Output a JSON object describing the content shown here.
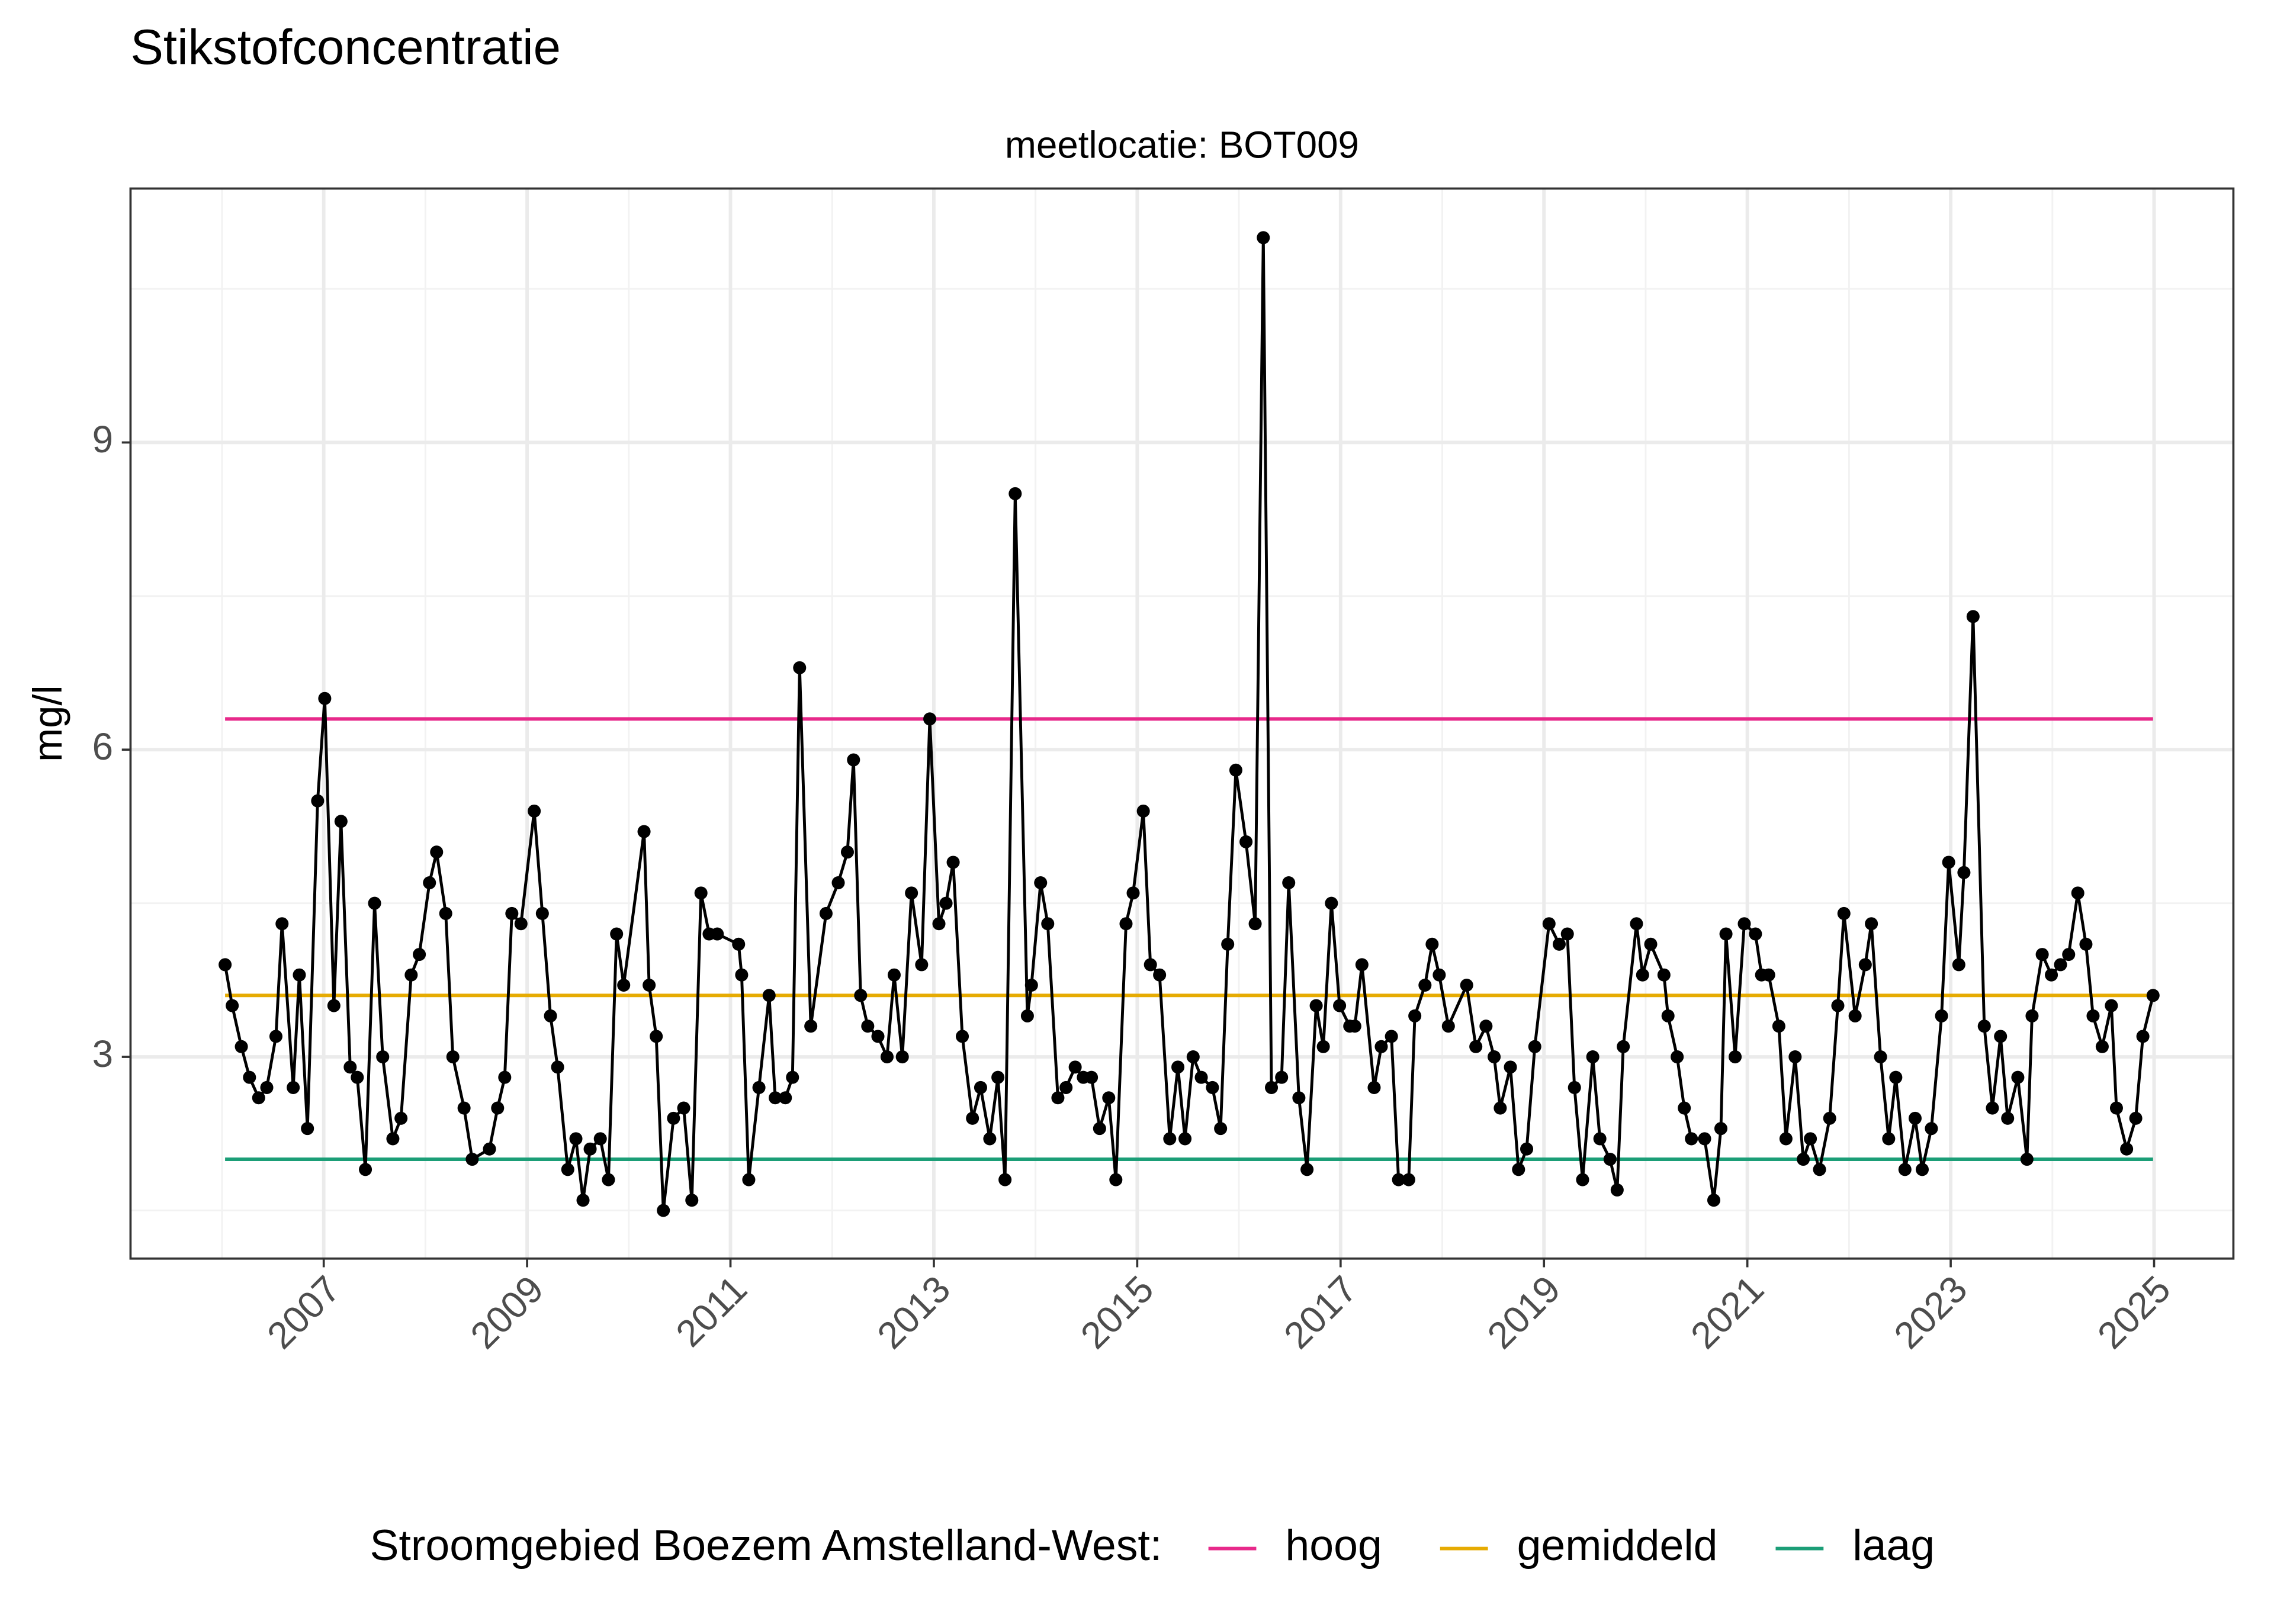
{
  "chart_data": {
    "type": "line",
    "title": "Stikstofconcentratie",
    "subtitle": "meetlocatie: BOT009",
    "ylabel": "mg/l",
    "legend_title": "Stroomgebied Boezem Amstelland-West:",
    "color": "#000000",
    "x": [
      2006.03,
      2006.1,
      2006.19,
      2006.27,
      2006.36,
      2006.44,
      2006.53,
      2006.59,
      2006.7,
      2006.76,
      2006.84,
      2006.94,
      2007.01,
      2007.1,
      2007.17,
      2007.26,
      2007.33,
      2007.41,
      2007.5,
      2007.58,
      2007.68,
      2007.76,
      2007.86,
      2007.94,
      2008.04,
      2008.11,
      2008.2,
      2008.27,
      2008.38,
      2008.46,
      2008.63,
      2008.71,
      2008.78,
      2008.85,
      2008.94,
      2009.07,
      2009.15,
      2009.23,
      2009.3,
      2009.4,
      2009.48,
      2009.55,
      2009.62,
      2009.72,
      2009.8,
      2009.88,
      2009.95,
      2010.15,
      2010.2,
      2010.27,
      2010.34,
      2010.44,
      2010.54,
      2010.62,
      2010.71,
      2010.79,
      2010.87,
      2011.08,
      2011.11,
      2011.18,
      2011.28,
      2011.38,
      2011.44,
      2011.54,
      2011.61,
      2011.68,
      2011.79,
      2011.94,
      2012.06,
      2012.15,
      2012.21,
      2012.28,
      2012.35,
      2012.45,
      2012.54,
      2012.61,
      2012.69,
      2012.78,
      2012.88,
      2012.96,
      2013.05,
      2013.12,
      2013.19,
      2013.28,
      2013.38,
      2013.46,
      2013.55,
      2013.63,
      2013.7,
      2013.8,
      2013.92,
      2013.96,
      2014.05,
      2014.12,
      2014.22,
      2014.3,
      2014.39,
      2014.47,
      2014.55,
      2014.63,
      2014.72,
      2014.79,
      2014.89,
      2014.96,
      2015.06,
      2015.13,
      2015.22,
      2015.32,
      2015.4,
      2015.47,
      2015.55,
      2015.63,
      2015.74,
      2015.82,
      2015.89,
      2015.97,
      2016.07,
      2016.16,
      2016.24,
      2016.32,
      2016.42,
      2016.49,
      2016.59,
      2016.67,
      2016.76,
      2016.83,
      2016.91,
      2016.99,
      2017.09,
      2017.14,
      2017.21,
      2017.33,
      2017.4,
      2017.5,
      2017.57,
      2017.67,
      2017.73,
      2017.83,
      2017.9,
      2017.97,
      2018.06,
      2018.24,
      2018.33,
      2018.43,
      2018.51,
      2018.57,
      2018.67,
      2018.75,
      2018.83,
      2018.91,
      2019.05,
      2019.15,
      2019.23,
      2019.3,
      2019.38,
      2019.48,
      2019.55,
      2019.65,
      2019.72,
      2019.78,
      2019.91,
      2019.97,
      2020.05,
      2020.18,
      2020.22,
      2020.31,
      2020.38,
      2020.45,
      2020.58,
      2020.67,
      2020.74,
      2020.79,
      2020.88,
      2020.97,
      2021.08,
      2021.14,
      2021.21,
      2021.31,
      2021.38,
      2021.47,
      2021.55,
      2021.62,
      2021.71,
      2021.81,
      2021.89,
      2021.95,
      2022.06,
      2022.16,
      2022.22,
      2022.31,
      2022.39,
      2022.46,
      2022.55,
      2022.65,
      2022.72,
      2022.81,
      2022.91,
      2022.98,
      2023.08,
      2023.13,
      2023.22,
      2023.33,
      2023.41,
      2023.49,
      2023.56,
      2023.66,
      2023.75,
      2023.8,
      2023.9,
      2023.99,
      2024.08,
      2024.16,
      2024.25,
      2024.33,
      2024.4,
      2024.49,
      2024.58,
      2024.63,
      2024.73,
      2024.82,
      2024.89,
      2024.99
    ],
    "values": [
      3.9,
      3.5,
      3.1,
      2.8,
      2.6,
      2.7,
      3.2,
      4.3,
      2.7,
      3.8,
      2.3,
      5.5,
      6.5,
      3.5,
      5.3,
      2.9,
      2.8,
      1.9,
      4.5,
      3.0,
      2.2,
      2.4,
      3.8,
      4.0,
      4.7,
      5.0,
      4.4,
      3.0,
      2.5,
      2.0,
      2.1,
      2.5,
      2.8,
      4.4,
      4.3,
      5.4,
      4.4,
      3.4,
      2.9,
      1.9,
      2.2,
      1.6,
      2.1,
      2.2,
      1.8,
      4.2,
      3.7,
      5.2,
      3.7,
      3.2,
      1.5,
      2.4,
      2.5,
      1.6,
      4.6,
      4.2,
      4.2,
      4.1,
      3.8,
      1.8,
      2.7,
      3.6,
      2.6,
      2.6,
      2.8,
      6.8,
      3.3,
      4.4,
      4.7,
      5.0,
      5.9,
      3.6,
      3.3,
      3.2,
      3.0,
      3.8,
      3.0,
      4.6,
      3.9,
      6.3,
      4.3,
      4.5,
      4.9,
      3.2,
      2.4,
      2.7,
      2.2,
      2.8,
      1.8,
      8.5,
      3.4,
      3.7,
      4.7,
      4.3,
      2.6,
      2.7,
      2.9,
      2.8,
      2.8,
      2.3,
      2.6,
      1.8,
      4.3,
      4.6,
      5.4,
      3.9,
      3.8,
      2.2,
      2.9,
      2.2,
      3.0,
      2.8,
      2.7,
      2.3,
      4.1,
      5.8,
      5.1,
      4.3,
      11.0,
      2.7,
      2.8,
      4.7,
      2.6,
      1.9,
      3.5,
      3.1,
      4.5,
      3.5,
      3.3,
      3.3,
      3.9,
      2.7,
      3.1,
      3.2,
      1.8,
      1.8,
      3.4,
      3.7,
      4.1,
      3.8,
      3.3,
      3.7,
      3.1,
      3.3,
      3.0,
      2.5,
      2.9,
      1.9,
      2.1,
      3.1,
      4.3,
      4.1,
      4.2,
      2.7,
      1.8,
      3.0,
      2.2,
      2.0,
      1.7,
      3.1,
      4.3,
      3.8,
      4.1,
      3.8,
      3.4,
      3.0,
      2.5,
      2.2,
      2.2,
      1.6,
      2.3,
      4.2,
      3.0,
      4.3,
      4.2,
      3.8,
      3.8,
      3.3,
      2.2,
      3.0,
      2.0,
      2.2,
      1.9,
      2.4,
      3.5,
      4.4,
      3.4,
      3.9,
      4.3,
      3.0,
      2.2,
      2.8,
      1.9,
      2.4,
      1.9,
      2.3,
      3.4,
      4.9,
      3.9,
      4.8,
      7.3,
      3.3,
      2.5,
      3.2,
      2.4,
      2.8,
      2.0,
      3.4,
      4.0,
      3.8,
      3.9,
      4.0,
      4.6,
      4.1,
      3.4,
      3.1,
      3.5,
      2.5,
      2.1,
      2.4,
      3.2,
      3.6
    ],
    "series": [
      {
        "name": "hoog",
        "color": "#e7298a",
        "x": [
          2006.03,
          2024.99
        ],
        "values": [
          6.3,
          6.3
        ]
      },
      {
        "name": "gemiddeld",
        "color": "#e6ab02",
        "x": [
          2006.03,
          2024.99
        ],
        "values": [
          3.6,
          3.6
        ]
      },
      {
        "name": "laag",
        "color": "#1b9e77",
        "x": [
          2006.03,
          2024.99
        ],
        "values": [
          2.0,
          2.0
        ]
      }
    ],
    "xlim": [
      2005.1,
      2025.78
    ],
    "ylim": [
      1.03,
      11.48
    ],
    "xticks": [
      2007,
      2009,
      2011,
      2013,
      2015,
      2017,
      2019,
      2021,
      2023,
      2025
    ],
    "minor_xticks": [
      2006,
      2008,
      2010,
      2012,
      2014,
      2016,
      2018,
      2020,
      2022,
      2024
    ],
    "yticks": [
      3,
      6,
      9
    ],
    "minor_yticks": [
      1.5,
      4.5,
      7.5,
      10.5
    ],
    "grid": true,
    "legend_position": "bottom"
  }
}
